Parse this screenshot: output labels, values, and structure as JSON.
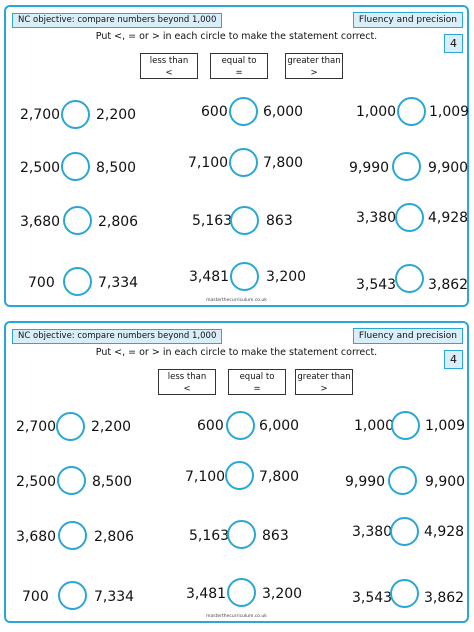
{
  "sheets": [
    {
      "objective": "NC objective: compare numbers beyond 1,000",
      "badge": "Fluency and precision",
      "number": "4",
      "instruction": "Put <, = or > in each circle to make the statement correct.",
      "keys": [
        {
          "title": "less than",
          "symbol": "<"
        },
        {
          "title": "equal to",
          "symbol": "="
        },
        {
          "title": "greater than",
          "symbol": ">"
        }
      ],
      "rows": [
        [
          [
            "2,700",
            "2,200"
          ],
          [
            "600",
            "6,000"
          ],
          [
            "1,000",
            "1,009"
          ]
        ],
        [
          [
            "2,500",
            "8,500"
          ],
          [
            "7,100",
            "7,800"
          ],
          [
            "9,990",
            "9,900"
          ]
        ],
        [
          [
            "3,680",
            "2,806"
          ],
          [
            "5,163",
            "863"
          ],
          [
            "3,380",
            "4,928"
          ]
        ],
        [
          [
            "700",
            "7,334"
          ],
          [
            "3,481",
            "3,200"
          ],
          [
            "3,543",
            "3,862"
          ]
        ]
      ],
      "footer": "masterthecurriculum.co.uk"
    },
    {
      "objective": "NC objective: compare numbers beyond 1,000",
      "badge": "Fluency and precision",
      "number": "4",
      "instruction": "Put <, = or > in each circle to make the statement correct.",
      "keys": [
        {
          "title": "less than",
          "symbol": "<"
        },
        {
          "title": "equal to",
          "symbol": "="
        },
        {
          "title": "greater than",
          "symbol": ">"
        }
      ],
      "rows": [
        [
          [
            "2,700",
            "2,200"
          ],
          [
            "600",
            "6,000"
          ],
          [
            "1,000",
            "1,009"
          ]
        ],
        [
          [
            "2,500",
            "8,500"
          ],
          [
            "7,100",
            "7,800"
          ],
          [
            "9,990",
            "9,900"
          ]
        ],
        [
          [
            "3,680",
            "2,806"
          ],
          [
            "5,163",
            "863"
          ],
          [
            "3,380",
            "4,928"
          ]
        ],
        [
          [
            "700",
            "7,334"
          ],
          [
            "3,481",
            "3,200"
          ],
          [
            "3,543",
            "3,862"
          ]
        ]
      ],
      "footer": "masterthecurriculum.co.uk"
    }
  ],
  "colors": {
    "accent": "#2aa7d4",
    "badge_fill": "#d9eef8"
  }
}
